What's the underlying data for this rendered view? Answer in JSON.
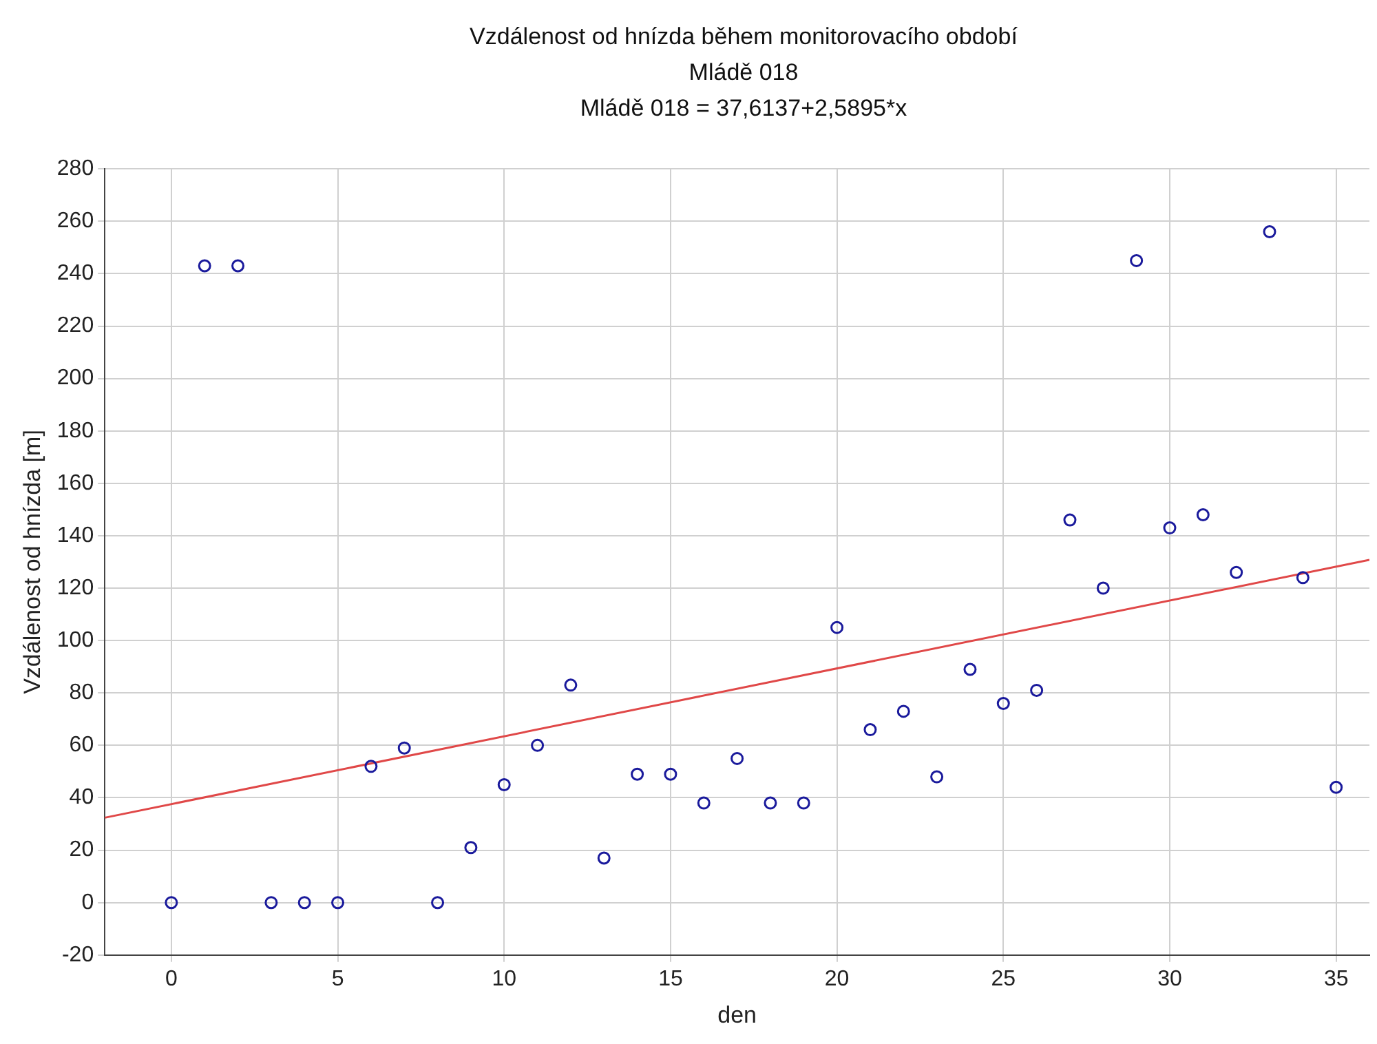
{
  "chart_data": {
    "type": "scatter",
    "title": "Vzdálenost od hnízda během monitorovacího období",
    "subtitle": "Mládě 018",
    "annotations": [
      "Mládě 018 = 37,6137+2,5895*x"
    ],
    "xlabel": "den",
    "ylabel": "Vzdálenost od hnízda [m]",
    "x": [
      0,
      1,
      2,
      3,
      4,
      5,
      6,
      7,
      8,
      9,
      10,
      11,
      12,
      13,
      14,
      15,
      16,
      17,
      18,
      19,
      20,
      21,
      22,
      23,
      24,
      25,
      26,
      27,
      28,
      29,
      30,
      31,
      32,
      33,
      34,
      35
    ],
    "series": [
      {
        "type": "scatter",
        "color": "#1a1a9c",
        "marker": "circle",
        "values": [
          0,
          243,
          243,
          0,
          0,
          0,
          52,
          59,
          0,
          21,
          45,
          60,
          83,
          17,
          49,
          49,
          38,
          55,
          38,
          38,
          105,
          66,
          73,
          48,
          89,
          76,
          81,
          146,
          120,
          245,
          143,
          148,
          126,
          256,
          124,
          44
        ]
      },
      {
        "type": "line",
        "color": "#e04848",
        "marker": "none",
        "line_style": "solid",
        "x": [
          -2,
          36
        ],
        "values": [
          32.4,
          130.8
        ]
      }
    ],
    "xlim": [
      -2,
      36
    ],
    "xticks": [
      0,
      5,
      10,
      15,
      20,
      25,
      30,
      35
    ],
    "ylim": [
      -20,
      280
    ],
    "yticks": [
      -20,
      0,
      20,
      40,
      60,
      80,
      100,
      120,
      140,
      160,
      180,
      200,
      220,
      240,
      260,
      280
    ],
    "grid": true,
    "legend": false
  }
}
